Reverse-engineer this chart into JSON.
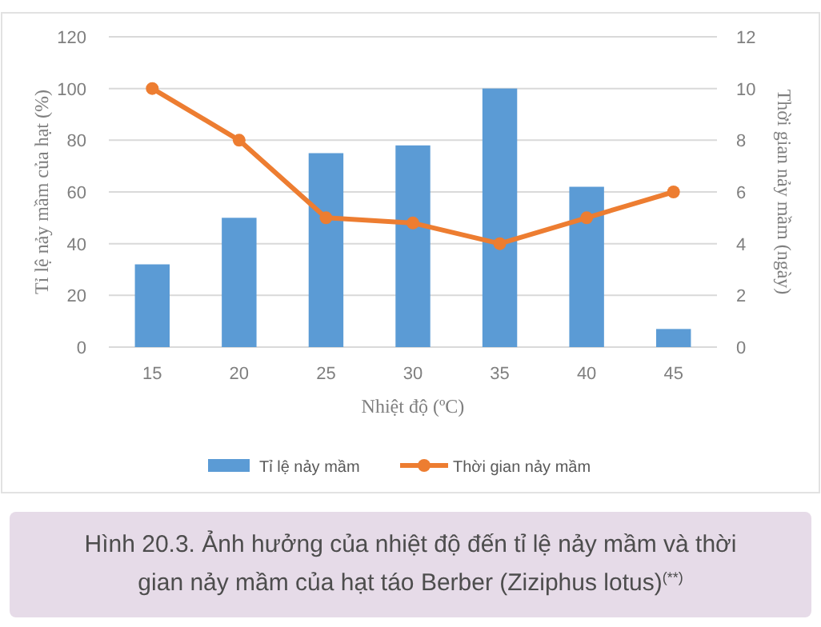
{
  "chart_data": {
    "type": "bar",
    "title": "Hình 20.3. Ảnh hưởng của nhiệt độ đến tỉ lệ nảy mầm và thời gian nảy mầm của hạt táo Berber (Ziziphus lotus)$^{(**)}$",
    "xlabel": "Nhiệt độ (ºC)",
    "ylabel": "Tỉ lệ nảy mầm của hạt (%)",
    "y2label": "Thời gian nảy mầm (ngày)",
    "categories": [
      "15",
      "20",
      "25",
      "30",
      "35",
      "40",
      "45"
    ],
    "series": [
      {
        "name": "Tỉ lệ nảy mầm",
        "color": "#5b9bd5",
        "values": [
          32,
          50,
          75,
          78,
          100,
          62,
          7
        ]
      },
      {
        "name": "Thời gian nảy mầm",
        "type": "line",
        "axis": "y2",
        "color": "#ed7d31",
        "marker": "circle",
        "values": [
          10,
          8,
          5,
          4.8,
          4,
          5,
          6
        ]
      }
    ],
    "ylim": [
      0,
      120
    ],
    "yticks": [
      0,
      20,
      40,
      60,
      80,
      100,
      120
    ],
    "y2lim": [
      0,
      12
    ],
    "y2ticks": [
      0,
      2,
      4,
      6,
      8,
      10,
      12
    ],
    "grid": "y",
    "legend": "bottom"
  }
}
